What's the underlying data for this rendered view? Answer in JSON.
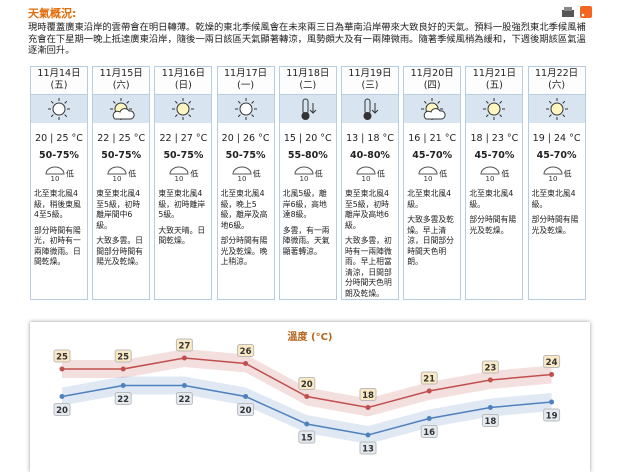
{
  "header": {
    "title": "天氣概況:",
    "summary": "現時覆蓋廣東沿岸的雲帶會在明日轉薄。乾燥的東北季候風會在未來兩三日為華南沿岸帶來大致良好的天氣。預料一股強烈東北季候風補充會在下星期一晚上抵達廣東沿岸，隨後一兩日該區天氣顯著轉涼，風勢頗大及有一兩陣微雨。隨著季候風稍為緩和，下週後期該區氣溫逐漸回升。"
  },
  "forecast": [
    {
      "date": "11月14日",
      "weekday": "(五)",
      "temp": "20 | 25 °C",
      "humidity": "50-75%",
      "psr_icon": "10",
      "psr": "低",
      "wind": "北至東北風4級，稍後東風4至5級。",
      "weather": "部分時間有陽光，初時有一兩陣微雨。日間乾燥。"
    },
    {
      "date": "11月15日",
      "weekday": "(六)",
      "temp": "22 | 25 °C",
      "humidity": "50-75%",
      "psr_icon": "10",
      "psr": "低",
      "wind": "東至東北風4至5級，初時離岸間中6級。",
      "weather": "大致多雲。日間部分時間有陽光及乾燥。"
    },
    {
      "date": "11月16日",
      "weekday": "(日)",
      "temp": "22 | 27 °C",
      "humidity": "50-75%",
      "psr_icon": "10",
      "psr": "低",
      "wind": "東至東北風4級，初時離岸5級。",
      "weather": "大致天晴。日間乾燥。"
    },
    {
      "date": "11月17日",
      "weekday": "(一)",
      "temp": "20 | 26 °C",
      "humidity": "50-75%",
      "psr_icon": "10",
      "psr": "低",
      "wind": "北至東北風4級，晚上5級，離岸及高地6級。",
      "weather": "部分時間有陽光及乾燥。晚上稍涼。"
    },
    {
      "date": "11月18日",
      "weekday": "(二)",
      "temp": "15 | 20 °C",
      "humidity": "55-80%",
      "psr_icon": "10",
      "psr": "低",
      "wind": "北風5級，離岸6級，高地達8級。",
      "weather": "多雲，有一兩陣微雨。天氣顯著轉涼。"
    },
    {
      "date": "11月19日",
      "weekday": "(三)",
      "temp": "13 | 18 °C",
      "humidity": "40-80%",
      "psr_icon": "10",
      "psr": "低",
      "wind": "東至東北風4至5級，初時離岸及高地6級。",
      "weather": "大致多雲，初時有一兩陣微雨。早上相當清涼，日間部分時間天色明朗及乾燥。"
    },
    {
      "date": "11月20日",
      "weekday": "(四)",
      "temp": "16 | 21 °C",
      "humidity": "45-70%",
      "psr_icon": "10",
      "psr": "低",
      "wind": "北至東北風4級。",
      "weather": "大致多雲及乾燥。早上清涼，日間部分時間天色明朗。"
    },
    {
      "date": "11月21日",
      "weekday": "(五)",
      "temp": "18 | 23 °C",
      "humidity": "45-70%",
      "psr_icon": "10",
      "psr": "低",
      "wind": "北至東北風4級。",
      "weather": "部分時間有陽光及乾燥。"
    },
    {
      "date": "11月22日",
      "weekday": "(六)",
      "temp": "19 | 24 °C",
      "humidity": "45-70%",
      "psr_icon": "10",
      "psr": "低",
      "wind": "北至東北風4級。",
      "weather": "部分時間有陽光及乾燥。"
    }
  ],
  "chart_data": {
    "type": "line",
    "title": "溫度 (°C)",
    "categories": [
      null,
      null,
      null,
      null,
      null,
      null,
      null,
      null,
      null
    ],
    "ylim": [
      10,
      30
    ],
    "series": [
      {
        "color": "#c0504d",
        "values": [
          25,
          25,
          27,
          26,
          20,
          18,
          21,
          23,
          24
        ]
      },
      {
        "color": "#4f81bd",
        "values": [
          20,
          22,
          22,
          20,
          15,
          13,
          16,
          18,
          19
        ]
      }
    ]
  }
}
